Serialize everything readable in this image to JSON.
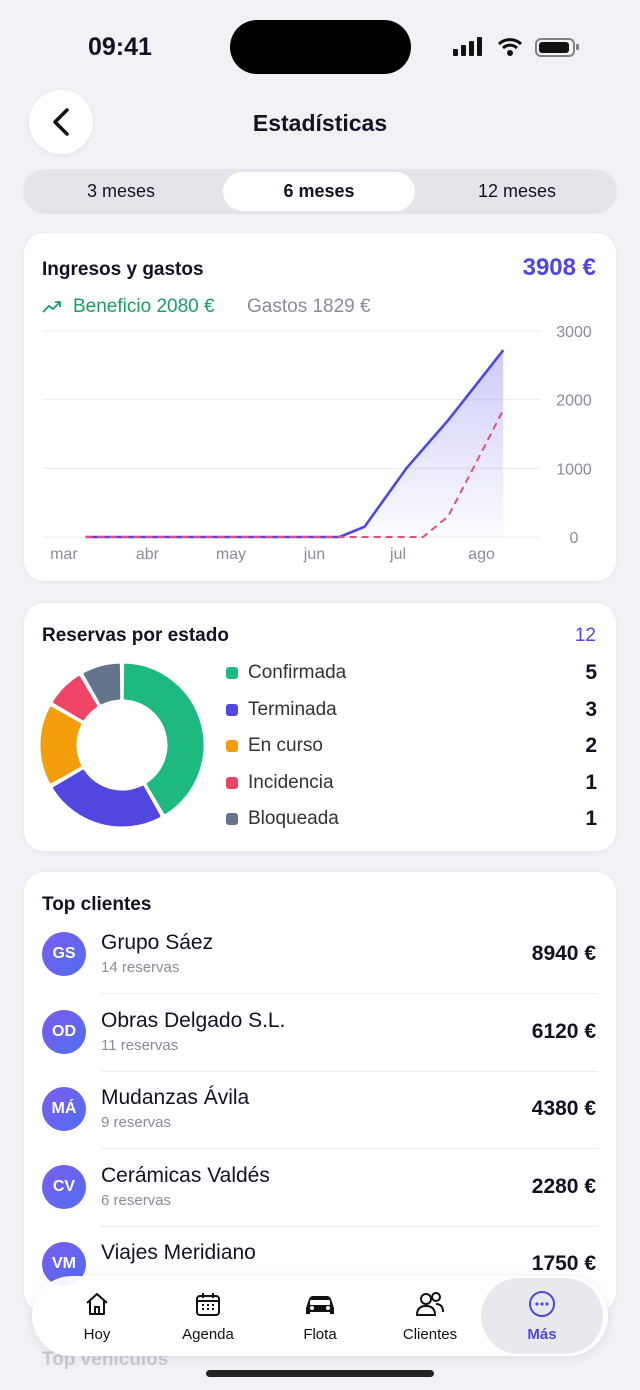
{
  "status": {
    "time": "09:41"
  },
  "header": {
    "title": "Estadísticas"
  },
  "tabs": {
    "items": [
      "3 meses",
      "6 meses",
      "12 meses"
    ],
    "active": 1
  },
  "revenue": {
    "title": "Ingresos y gastos",
    "total": "3908 €",
    "profit": "Beneficio 2080 €",
    "expenses": "Gastos 1829 €",
    "chart_data": {
      "type": "line",
      "xlim": [
        -0.25,
        5.7
      ],
      "xticks": [
        {
          "value": 0,
          "label": "mar"
        },
        {
          "value": 1,
          "label": "abr"
        },
        {
          "value": 2,
          "label": "may"
        },
        {
          "value": 3,
          "label": "jun"
        },
        {
          "value": 4,
          "label": "jul"
        },
        {
          "value": 5,
          "label": "ago"
        }
      ],
      "ylim": [
        0,
        3000
      ],
      "yticks": [
        0,
        1000,
        2000,
        3000
      ],
      "grid": true,
      "series": [
        {
          "color": "#4f46e5",
          "x": [
            0.26,
            3.3,
            3.6,
            4.1,
            4.6,
            5.26
          ],
          "values": [
            0,
            0,
            150,
            1000,
            1700,
            2720
          ]
        },
        {
          "color": "#e0507a",
          "dashed": true,
          "x": [
            0.26,
            4.3,
            4.6,
            4.9,
            5.26
          ],
          "values": [
            0,
            0,
            300,
            1000,
            1850
          ]
        }
      ]
    }
  },
  "bookings": {
    "title": "Reservas por estado",
    "chart_data": {
      "type": "donut",
      "total": 12,
      "categories": [
        "Confirmada",
        "Terminada",
        "En curso",
        "Incidencia",
        "Bloqueada"
      ],
      "values": [
        5,
        3,
        2,
        1,
        1
      ],
      "colors": [
        "#1db980",
        "#5146e0",
        "#f59e0b",
        "#ef4466",
        "#64748b"
      ]
    }
  },
  "clients": {
    "title": "Top clientes",
    "rows": [
      {
        "initials": "GS",
        "name": "Grupo Sáez",
        "sub": "14 reservas",
        "amount": "8940 €"
      },
      {
        "initials": "OD",
        "name": "Obras Delgado S.L.",
        "sub": "11 reservas",
        "amount": "6120 €"
      },
      {
        "initials": "MÁ",
        "name": "Mudanzas Ávila",
        "sub": "9 reservas",
        "amount": "4380 €"
      },
      {
        "initials": "CV",
        "name": "Cerámicas Valdés",
        "sub": "6 reservas",
        "amount": "2280 €"
      },
      {
        "initials": "VM",
        "name": "Viajes Meridiano",
        "sub": "",
        "amount": "1750 €"
      }
    ]
  },
  "next_section": "Top vehículos",
  "nav": {
    "items": [
      "Hoy",
      "Agenda",
      "Flota",
      "Clientes",
      "Más"
    ],
    "active": 4
  }
}
